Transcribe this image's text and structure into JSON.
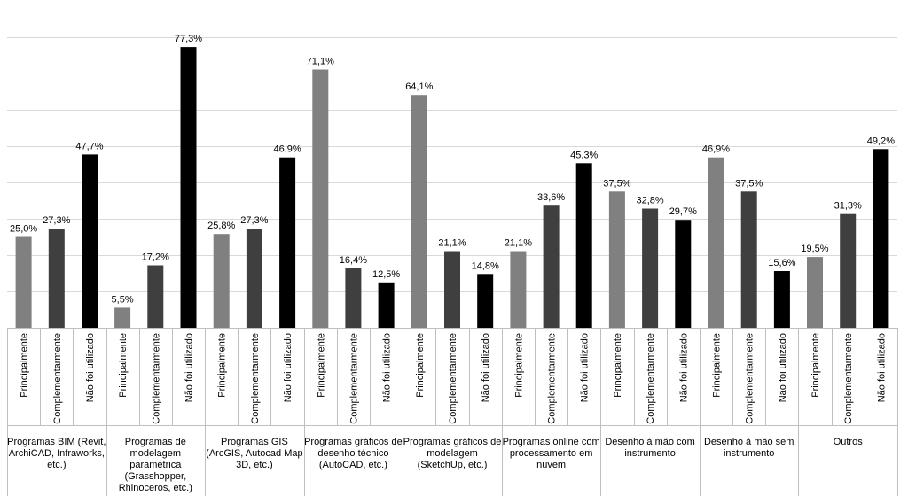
{
  "chart_data": {
    "type": "bar",
    "title": "",
    "xlabel": "",
    "ylabel": "",
    "ylim": [
      0,
      80
    ],
    "grid": true,
    "legend": "none",
    "group_labels": [
      "Programas BIM (Revit, ArchiCAD, Infraworks, etc.)",
      "Programas de modelagem paramétrica (Grasshopper, Rhinoceros, etc.)",
      "Programas GIS (ArcGIS, Autocad Map 3D, etc.)",
      "Programas gráficos de desenho técnico (AutoCAD, etc.)",
      "Programas gráficos de modelagem (SketchUp, etc.)",
      "Programas online com processamento em nuvem",
      "Desenho à mão com instrumento",
      "Desenho à mão sem instrumento",
      "Outros"
    ],
    "group_label_lines": [
      [
        "Programas BIM (Revit,",
        "ArchiCAD, Infraworks,",
        "etc.)"
      ],
      [
        "Programas de",
        "modelagem",
        "paramétrica",
        "(Grasshopper,",
        "Rhinoceros, etc.)"
      ],
      [
        "Programas GIS",
        "(ArcGIS, Autocad Map",
        "3D, etc.)"
      ],
      [
        "Programas gráficos de",
        "desenho técnico",
        "(AutoCAD, etc.)"
      ],
      [
        "Programas gráficos de",
        "modelagem",
        "(SketchUp, etc.)"
      ],
      [
        "Programas online com",
        "processamento em",
        "nuvem"
      ],
      [
        "Desenho à mão com",
        "instrumento"
      ],
      [
        "Desenho à mão sem",
        "instrumento"
      ],
      [
        "Outros"
      ]
    ],
    "subcategories": [
      "Principalmente",
      "Complementarmente",
      "Não foi utilizado"
    ],
    "subcategory_colors": [
      "#808080",
      "#3f3f3f",
      "#000000"
    ],
    "values": [
      [
        25.0,
        27.3,
        47.7
      ],
      [
        5.5,
        17.2,
        77.3
      ],
      [
        25.8,
        27.3,
        46.9
      ],
      [
        71.1,
        16.4,
        12.5
      ],
      [
        64.1,
        21.1,
        14.8
      ],
      [
        21.1,
        33.6,
        45.3
      ],
      [
        37.5,
        32.8,
        29.7
      ],
      [
        46.9,
        37.5,
        15.6
      ],
      [
        19.5,
        31.3,
        49.2
      ]
    ],
    "value_labels": [
      [
        "25,0%",
        "27,3%",
        "47,7%"
      ],
      [
        "5,5%",
        "17,2%",
        "77,3%"
      ],
      [
        "25,8%",
        "27,3%",
        "46,9%"
      ],
      [
        "71,1%",
        "16,4%",
        "12,5%"
      ],
      [
        "64,1%",
        "21,1%",
        "14,8%"
      ],
      [
        "21,1%",
        "33,6%",
        "45,3%"
      ],
      [
        "37,5%",
        "32,8%",
        "29,7%"
      ],
      [
        "46,9%",
        "37,5%",
        "15,6%"
      ],
      [
        "19,5%",
        "31,3%",
        "49,2%"
      ]
    ]
  },
  "colors": {
    "grid": "#d9d9d9",
    "axis": "#bfbfbf"
  }
}
